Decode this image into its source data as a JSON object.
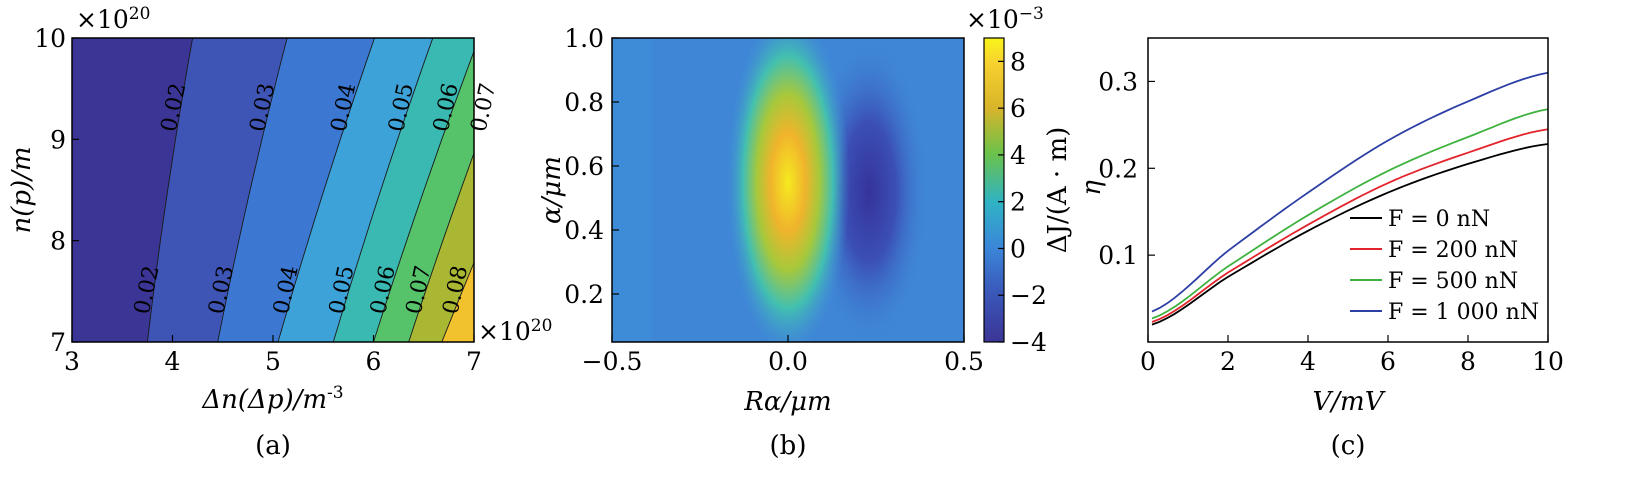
{
  "panels": [
    {
      "caption": "(a)",
      "type": "contour",
      "xlabel": "Δn(Δp)/m",
      "xlabel_sup": "-3",
      "ylabel": "n(p)/m",
      "y_scale_note": "×10",
      "y_scale_exp": "20",
      "x_scale_note": "×10",
      "x_scale_exp": "20",
      "x_ticks": [
        "3",
        "4",
        "5",
        "6",
        "7"
      ],
      "y_ticks": [
        "7",
        "8",
        "9",
        "10"
      ],
      "xlim": [
        3,
        7
      ],
      "ylim": [
        7,
        10
      ],
      "contour_levels": [
        0.02,
        0.03,
        0.04,
        0.05,
        0.06,
        0.07,
        0.08
      ],
      "contour_labels_top": [
        "0.02",
        "0.03",
        "0.04",
        "0.05",
        "0.06",
        "0.07"
      ],
      "contour_labels_bottom": [
        "0.02",
        "0.03",
        "0.04",
        "0.05",
        "0.06",
        "0.07",
        "0.08"
      ],
      "band_colors": [
        "#3b3595",
        "#3f55b6",
        "#3c78d2",
        "#3da2d8",
        "#3ab9b2",
        "#56c36b",
        "#a9b733",
        "#f2c12e"
      ]
    },
    {
      "caption": "(b)",
      "type": "heatmap",
      "xlabel": "Rα/μm",
      "ylabel": "α/μm",
      "x_ticks": [
        "−0.5",
        "0.0",
        "0.5"
      ],
      "y_ticks": [
        "0.2",
        "0.4",
        "0.6",
        "0.8",
        "1.0"
      ],
      "xlim": [
        -0.5,
        0.5
      ],
      "ylim": [
        0.05,
        1.0
      ],
      "colorbar_label": "ΔJ/(A · m)",
      "colorbar_scale": "×10",
      "colorbar_scale_exp": "−3",
      "colorbar_ticks": [
        "−4",
        "−2",
        "0",
        "2",
        "4",
        "6",
        "8"
      ],
      "colorbar_range": [
        -4,
        9
      ],
      "features": [
        {
          "kind": "peak",
          "x": 0.0,
          "y": 0.55,
          "value": 9
        },
        {
          "kind": "trough",
          "x": 0.23,
          "y": 0.52,
          "value": -4
        }
      ]
    },
    {
      "caption": "(c)",
      "type": "line",
      "xlabel": "V/mV",
      "ylabel": "η",
      "x_ticks": [
        "0",
        "2",
        "4",
        "6",
        "8",
        "10"
      ],
      "y_ticks": [
        "0.1",
        "0.2",
        "0.3"
      ],
      "xlim": [
        0,
        10
      ],
      "ylim": [
        0,
        0.35
      ],
      "legend_position": "bottom-right",
      "series": [
        {
          "name": "F = 0 nN",
          "color": "#000000",
          "x": [
            0.1,
            2,
            4,
            6,
            8,
            10
          ],
          "values": [
            0.02,
            0.075,
            0.128,
            0.172,
            0.205,
            0.228
          ]
        },
        {
          "name": "F = 200 nN",
          "color": "#e3242b",
          "x": [
            0.1,
            2,
            4,
            6,
            8,
            10
          ],
          "values": [
            0.023,
            0.08,
            0.135,
            0.183,
            0.218,
            0.245
          ]
        },
        {
          "name": "F = 500 nN",
          "color": "#3fb23f",
          "x": [
            0.1,
            2,
            4,
            6,
            8,
            10
          ],
          "values": [
            0.027,
            0.087,
            0.146,
            0.197,
            0.236,
            0.268
          ]
        },
        {
          "name": "F = 1 000 nN",
          "color": "#2d3fa5",
          "x": [
            0.1,
            2,
            4,
            6,
            8,
            10
          ],
          "values": [
            0.035,
            0.105,
            0.172,
            0.232,
            0.277,
            0.31
          ]
        }
      ]
    }
  ]
}
